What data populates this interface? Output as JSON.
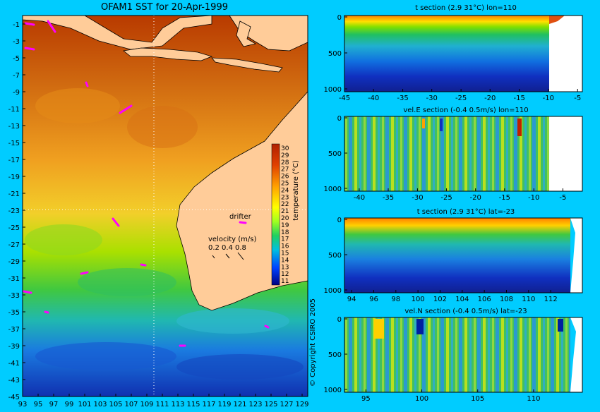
{
  "colors": {
    "background": "#00ccff",
    "land": "#ffcc99",
    "drifter": "#ff00ff",
    "crosshair": "#ffffff"
  },
  "map": {
    "title": "OFAM1 SST for 20-Apr-1999",
    "lat_labels": [
      "-1",
      "-3",
      "-5",
      "-7",
      "-9",
      "-11",
      "-13",
      "-15",
      "-17",
      "-19",
      "-21",
      "-23",
      "-25",
      "-27",
      "-29",
      "-31",
      "-33",
      "-35",
      "-37",
      "-39",
      "-41",
      "-43",
      "-45"
    ],
    "lon_labels": [
      "93",
      "95",
      "97",
      "99",
      "101",
      "103",
      "105",
      "107",
      "109",
      "111",
      "113",
      "115",
      "117",
      "119",
      "121",
      "123",
      "125",
      "127",
      "129"
    ],
    "copyright": "© Copyright CSIRO 2005",
    "drifter_label": "drifter",
    "velocity_title": "velocity (m/s)",
    "velocity_values": [
      "0.2",
      "0.4",
      "0.8"
    ],
    "colorbar": {
      "label": "temperature (°C)",
      "ticks": [
        "30",
        "29",
        "28",
        "27",
        "26",
        "25",
        "24",
        "23",
        "22",
        "21",
        "20",
        "19",
        "18",
        "17",
        "16",
        "15",
        "14",
        "13",
        "12",
        "11"
      ]
    }
  },
  "sections": [
    {
      "title": "t section (2.9      31°C) lon=110",
      "x_ticks": [
        "-45",
        "-40",
        "-35",
        "-30",
        "-25",
        "-20",
        "-15",
        "-10",
        "-5"
      ],
      "y_ticks": [
        "0",
        "500",
        "1000"
      ]
    },
    {
      "title": "vel.E section (-0.4      0.5m/s) lon=110",
      "x_ticks": [
        "-40",
        "-35",
        "-30",
        "-25",
        "-20",
        "-15",
        "-10",
        "-5"
      ],
      "y_ticks": [
        "0",
        "500",
        "1000"
      ]
    },
    {
      "title": "t section (2.9      31°C) lat=-23",
      "x_ticks": [
        "94",
        "96",
        "98",
        "100",
        "102",
        "104",
        "106",
        "108",
        "110",
        "112"
      ],
      "y_ticks": [
        "0",
        "500",
        "1000"
      ]
    },
    {
      "title": "vel.N section (-0.4      0.5m/s) lat=-23",
      "x_ticks": [
        "95",
        "100",
        "105",
        "110"
      ],
      "y_ticks": [
        "0",
        "500",
        "1000"
      ]
    }
  ]
}
